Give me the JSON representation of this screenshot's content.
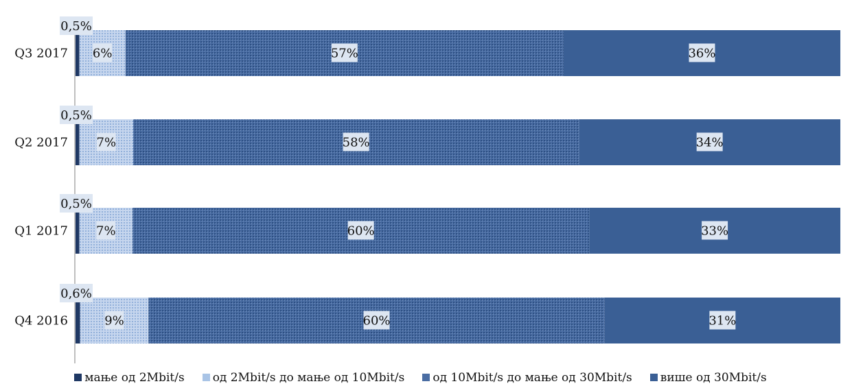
{
  "chart_data": {
    "type": "bar",
    "orientation": "horizontal",
    "stacked": true,
    "normalized_100_percent": true,
    "categories": [
      "Q3 2017",
      "Q2 2017",
      "Q1 2017",
      "Q4 2016"
    ],
    "series": [
      {
        "name": "мање од 2Mbit/s",
        "values": [
          0.5,
          0.5,
          0.5,
          0.6
        ],
        "labels": [
          "0,5%",
          "0,5%",
          "0,5%",
          "0,6%"
        ],
        "color": "#1f3864",
        "pattern": "solid"
      },
      {
        "name": "од 2Mbit/s до мање од 10Mbit/s",
        "values": [
          6,
          7,
          7,
          9
        ],
        "labels": [
          "6%",
          "7%",
          "7%",
          "9%"
        ],
        "color": "#a9c4e6",
        "pattern": "dotted"
      },
      {
        "name": "од 10Mbit/s до мање од 30Mbit/s",
        "values": [
          57,
          58,
          60,
          60
        ],
        "labels": [
          "57%",
          "58%",
          "60%",
          "60%"
        ],
        "color": "#3a5f95",
        "pattern": "dotted"
      },
      {
        "name": "више од 30Mbit/s",
        "values": [
          36,
          34,
          33,
          31
        ],
        "labels": [
          "36%",
          "34%",
          "33%",
          "31%"
        ],
        "color": "#3a5f95",
        "pattern": "solid"
      }
    ],
    "xlim": [
      0,
      100
    ],
    "grid": false,
    "legend_position": "bottom"
  }
}
